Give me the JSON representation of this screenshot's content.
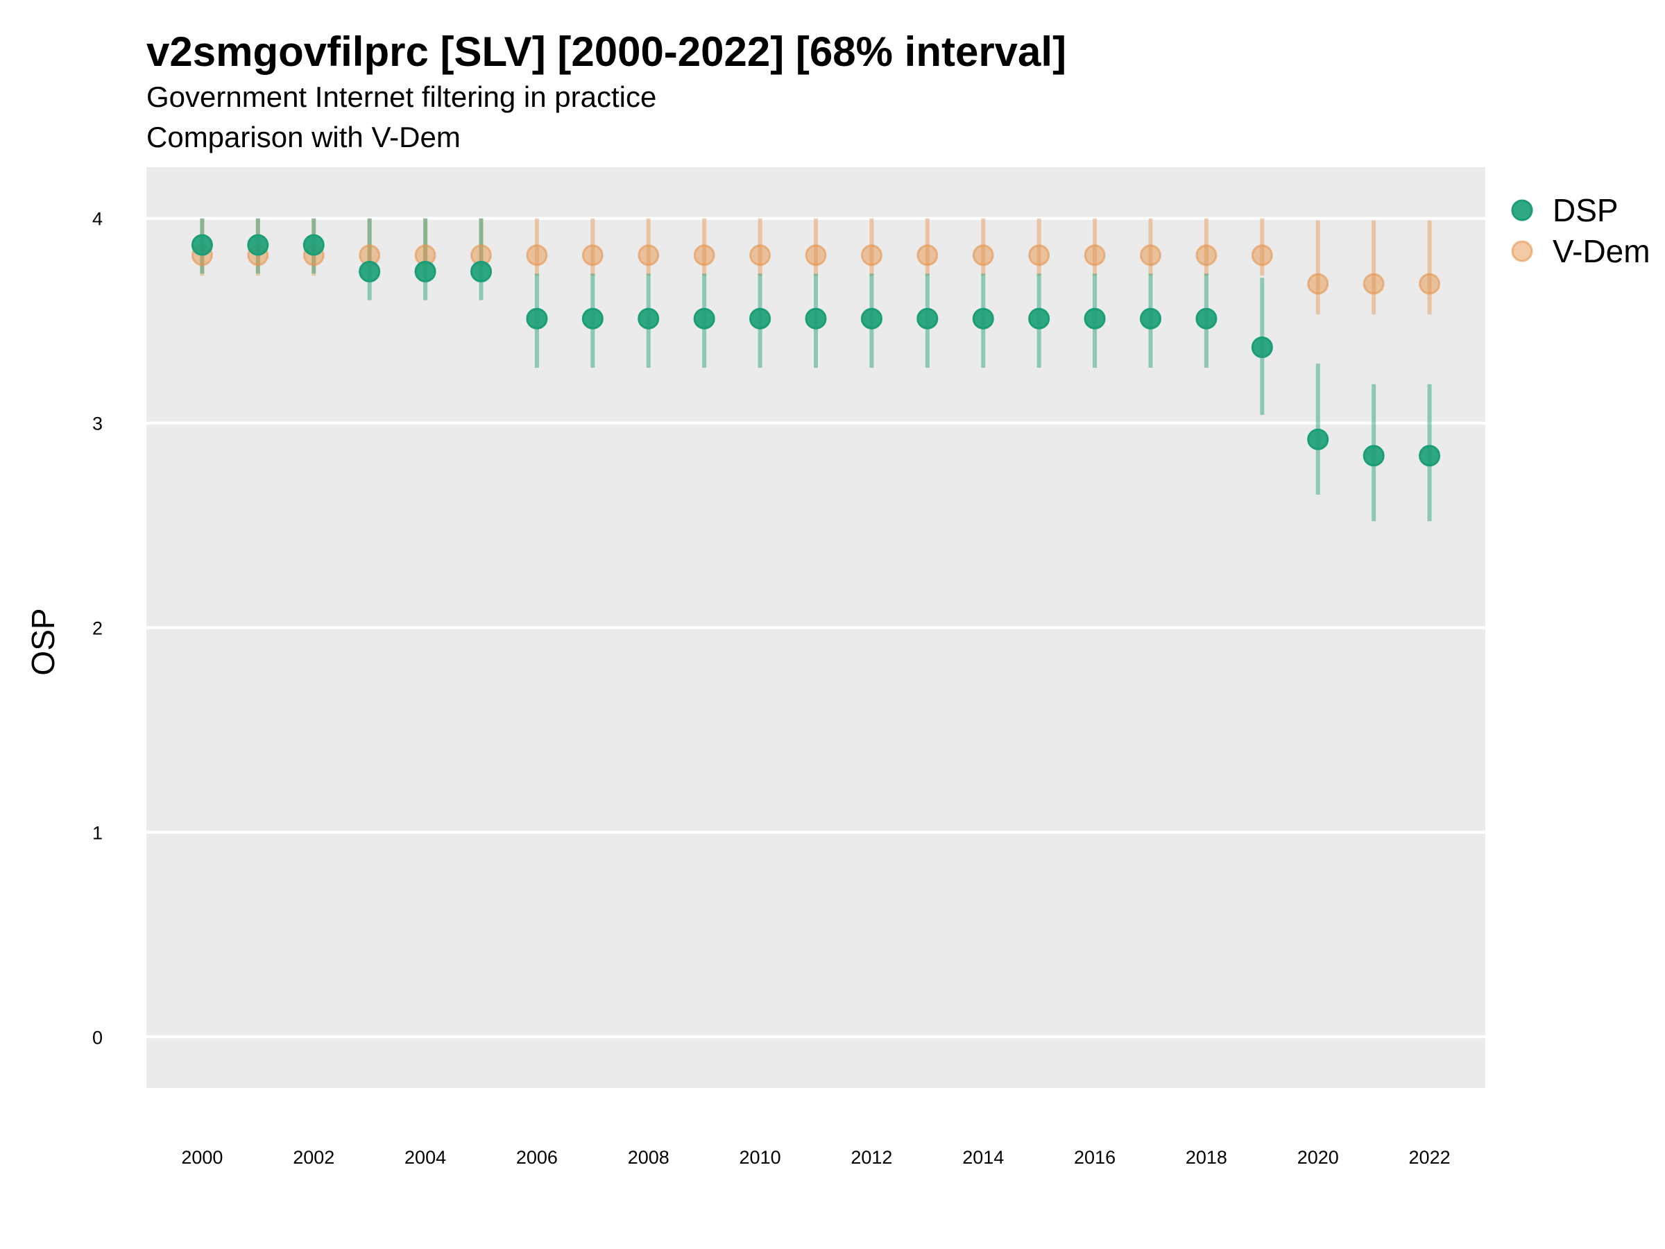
{
  "chart_data": {
    "type": "scatter",
    "title": "v2smgovfilprc [SLV] [2000-2022] [68% interval]",
    "subtitle_lines": [
      "Government Internet filtering in practice",
      "Comparison with V-Dem"
    ],
    "xlabel": "",
    "ylabel": "OSP",
    "xlim": [
      1999,
      2023
    ],
    "ylim": [
      -0.25,
      4.25
    ],
    "yticks": [
      0,
      1,
      2,
      3,
      4
    ],
    "xticks": [
      2000,
      2002,
      2004,
      2006,
      2008,
      2010,
      2012,
      2014,
      2016,
      2018,
      2020,
      2022
    ],
    "grid": true,
    "legend_position": "right",
    "x": [
      2000,
      2001,
      2002,
      2003,
      2004,
      2005,
      2006,
      2007,
      2008,
      2009,
      2010,
      2011,
      2012,
      2013,
      2014,
      2015,
      2016,
      2017,
      2018,
      2019,
      2020,
      2021,
      2022
    ],
    "series": [
      {
        "name": "V-Dem",
        "color": "#E6954E",
        "values": [
          3.82,
          3.82,
          3.82,
          3.82,
          3.82,
          3.82,
          3.82,
          3.82,
          3.82,
          3.82,
          3.82,
          3.82,
          3.82,
          3.82,
          3.82,
          3.82,
          3.82,
          3.82,
          3.82,
          3.82,
          3.68,
          3.68,
          3.68
        ],
        "lower": [
          3.72,
          3.72,
          3.72,
          3.72,
          3.72,
          3.72,
          3.72,
          3.72,
          3.72,
          3.72,
          3.72,
          3.72,
          3.72,
          3.72,
          3.72,
          3.72,
          3.72,
          3.72,
          3.72,
          3.72,
          3.53,
          3.53,
          3.53
        ],
        "upper": [
          4.0,
          4.0,
          4.0,
          4.0,
          4.0,
          4.0,
          4.0,
          4.0,
          4.0,
          4.0,
          4.0,
          4.0,
          4.0,
          4.0,
          4.0,
          4.0,
          4.0,
          4.0,
          4.0,
          4.0,
          3.99,
          3.99,
          3.99
        ]
      },
      {
        "name": "DSP",
        "color": "#1B9E77",
        "values": [
          3.87,
          3.87,
          3.87,
          3.74,
          3.74,
          3.74,
          3.51,
          3.51,
          3.51,
          3.51,
          3.51,
          3.51,
          3.51,
          3.51,
          3.51,
          3.51,
          3.51,
          3.51,
          3.51,
          3.37,
          2.92,
          2.84,
          2.84
        ],
        "lower": [
          3.73,
          3.73,
          3.73,
          3.6,
          3.6,
          3.6,
          3.27,
          3.27,
          3.27,
          3.27,
          3.27,
          3.27,
          3.27,
          3.27,
          3.27,
          3.27,
          3.27,
          3.27,
          3.27,
          3.04,
          2.65,
          2.52,
          2.52
        ],
        "upper": [
          4.0,
          4.0,
          4.0,
          4.0,
          4.0,
          4.0,
          3.73,
          3.73,
          3.73,
          3.73,
          3.73,
          3.73,
          3.73,
          3.73,
          3.73,
          3.73,
          3.73,
          3.73,
          3.73,
          3.71,
          3.29,
          3.19,
          3.19
        ]
      }
    ],
    "legend": [
      "DSP",
      "V-Dem"
    ]
  }
}
